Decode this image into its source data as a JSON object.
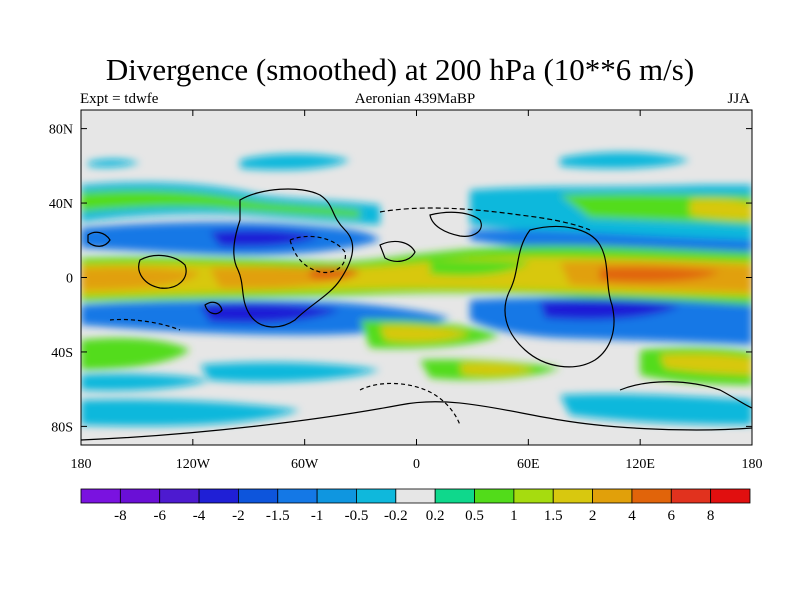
{
  "figure": {
    "title": "Divergence (smoothed) at 200 hPa (10**6 m/s)",
    "left_label": "Expt = tdwfe",
    "center_label": "Aeronian 439MaBP",
    "right_label": "JJA"
  },
  "map": {
    "lat_labels": [
      "80N",
      "40N",
      "0",
      "40S",
      "80S"
    ],
    "lon_labels": [
      "180",
      "120W",
      "60W",
      "0",
      "60E",
      "120E",
      "180"
    ],
    "lat_ticks": [
      80,
      40,
      0,
      -40,
      -80
    ],
    "lon_ticks": [
      -180,
      -120,
      -60,
      0,
      60,
      120,
      180
    ],
    "background_color": "#e6e6e6"
  },
  "colorbar": {
    "labels": [
      "-8",
      "-6",
      "-4",
      "-2",
      "-1.5",
      "-1",
      "-0.5",
      "-0.2",
      "0.2",
      "0.5",
      "1",
      "1.5",
      "2",
      "4",
      "6",
      "8"
    ],
    "colors": [
      "#7a12e0",
      "#6a0fd6",
      "#4d1ad0",
      "#1f1fd6",
      "#0d55dc",
      "#1478e6",
      "#0f96e0",
      "#0fb8dc",
      "#e6e6e6",
      "#0fd88c",
      "#52dc1a",
      "#a6dc0f",
      "#d8c80f",
      "#e1a00a",
      "#e1640a",
      "#e1321e",
      "#e10f0f"
    ]
  }
}
